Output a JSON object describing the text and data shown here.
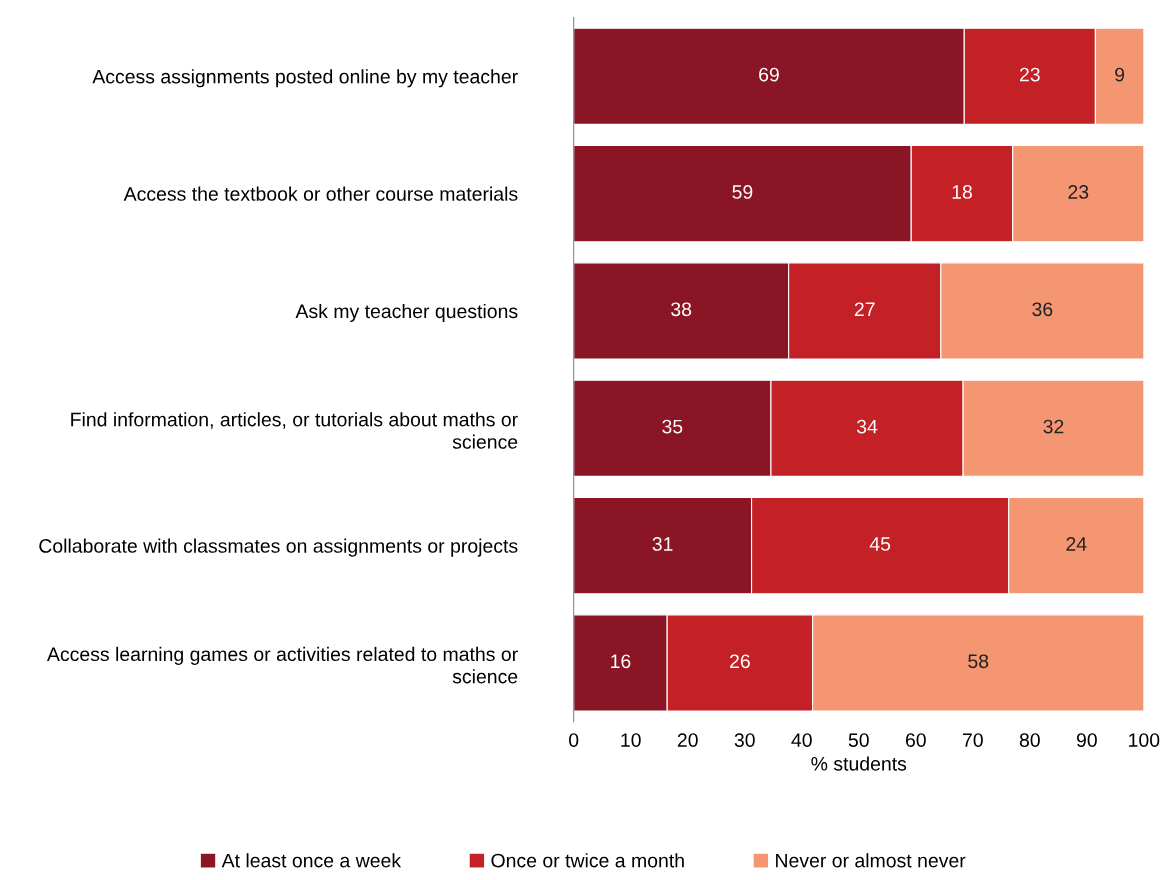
{
  "chart_data": {
    "type": "bar",
    "orientation": "horizontal",
    "stacked": true,
    "xlabel": "% students",
    "categories": [
      "Access assignments posted online by my teacher",
      "Access the textbook or other course materials",
      "Ask my teacher questions",
      "Find information, articles, or tutorials about maths or science",
      "Collaborate with classmates on assignments or projects",
      "Access learning games or activities related to maths or science"
    ],
    "series": [
      {
        "name": "At least once a week",
        "color": "#8a1525",
        "values": [
          68.5,
          59.2,
          37.7,
          34.6,
          31.2,
          16.4
        ],
        "value_labels": [
          "69",
          "59",
          "38",
          "35",
          "31",
          "16"
        ]
      },
      {
        "name": "Once or twice a month",
        "color": "#c42127",
        "values": [
          23,
          17.8,
          26.7,
          33.7,
          45.1,
          25.5
        ],
        "value_labels": [
          "23",
          "18",
          "27",
          "34",
          "45",
          "26"
        ]
      },
      {
        "name": "Never or almost never",
        "color": "#f59672",
        "values": [
          8.5,
          23,
          35.6,
          31.7,
          23.7,
          58.1
        ],
        "value_labels": [
          "9",
          "23",
          "36",
          "32",
          "24",
          "58"
        ]
      }
    ],
    "xlim": [
      0,
      100
    ],
    "xticks": [
      0,
      10,
      20,
      30,
      40,
      50,
      60,
      70,
      80,
      90,
      100
    ],
    "grid": false,
    "legend": "bottom"
  }
}
